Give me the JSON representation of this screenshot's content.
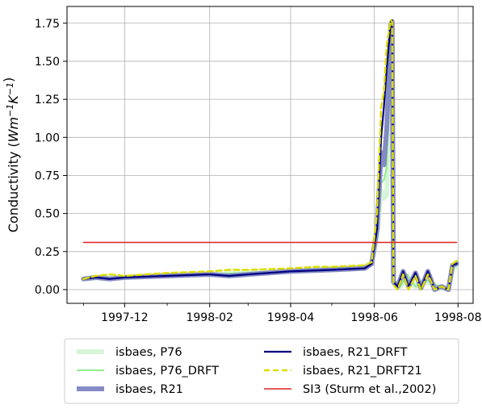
{
  "chart_data": {
    "type": "line",
    "ylabel_main": "Conductivity (",
    "ylabel_unit_html": "Wm-1K-1",
    "ylabel_suffix": ")",
    "ylim": [
      -0.09,
      1.86
    ],
    "xlim": [
      "1997-10-20",
      "1998-08-12"
    ],
    "grid": true,
    "legend_position": "below plot, two columns",
    "x_ticks": [
      "1997-12",
      "1998-02",
      "1998-04",
      "1998-06",
      "1998-08"
    ],
    "y_ticks": [
      "0.00",
      "0.25",
      "0.50",
      "0.75",
      "1.00",
      "1.25",
      "1.50",
      "1.75"
    ],
    "series": [
      {
        "name": "isbaes, P76",
        "color": "#d6f5d6",
        "points": [
          [
            "1997-11-01",
            0.07
          ],
          [
            "1997-11-15",
            0.08
          ],
          [
            "1997-12-01",
            0.08
          ],
          [
            "1998-01-01",
            0.09
          ],
          [
            "1998-02-01",
            0.1
          ],
          [
            "1998-03-01",
            0.11
          ],
          [
            "1998-04-01",
            0.12
          ],
          [
            "1998-05-01",
            0.14
          ],
          [
            "1998-05-25",
            0.15
          ],
          [
            "1998-05-30",
            0.17
          ],
          [
            "1998-06-03",
            0.35
          ],
          [
            "1998-06-06",
            0.65
          ],
          [
            "1998-06-08",
            0.6
          ],
          [
            "1998-06-10",
            0.62
          ],
          [
            "1998-06-12",
            1.3
          ],
          [
            "1998-06-14",
            1.55
          ],
          [
            "1998-06-15",
            0.05
          ],
          [
            "1998-06-20",
            0.02
          ],
          [
            "1998-06-25",
            0.08
          ],
          [
            "1998-07-01",
            0.02
          ],
          [
            "1998-07-10",
            0.05
          ],
          [
            "1998-07-20",
            0.01
          ],
          [
            "1998-07-25",
            0.0
          ],
          [
            "1998-07-28",
            0.14
          ],
          [
            "1998-07-31",
            0.15
          ]
        ]
      },
      {
        "name": "isbaes, P76_DRFT",
        "color": "#90ee90",
        "points": [
          [
            "1997-11-01",
            0.07
          ],
          [
            "1997-11-15",
            0.08
          ],
          [
            "1997-12-01",
            0.08
          ],
          [
            "1998-01-01",
            0.09
          ],
          [
            "1998-02-01",
            0.1
          ],
          [
            "1998-03-01",
            0.11
          ],
          [
            "1998-04-01",
            0.12
          ],
          [
            "1998-05-01",
            0.14
          ],
          [
            "1998-05-25",
            0.15
          ],
          [
            "1998-05-30",
            0.17
          ],
          [
            "1998-06-03",
            0.35
          ],
          [
            "1998-06-06",
            0.7
          ],
          [
            "1998-06-08",
            0.72
          ],
          [
            "1998-06-10",
            0.8
          ],
          [
            "1998-06-12",
            1.35
          ],
          [
            "1998-06-14",
            1.65
          ],
          [
            "1998-06-15",
            0.05
          ],
          [
            "1998-06-20",
            0.02
          ],
          [
            "1998-06-25",
            0.1
          ],
          [
            "1998-07-01",
            0.02
          ],
          [
            "1998-07-10",
            0.06
          ],
          [
            "1998-07-20",
            0.01
          ],
          [
            "1998-07-25",
            0.0
          ],
          [
            "1998-07-28",
            0.15
          ],
          [
            "1998-07-31",
            0.16
          ]
        ]
      },
      {
        "name": "isbaes, R21",
        "color": "#7f85c2",
        "points": [
          [
            "1997-11-01",
            0.07
          ],
          [
            "1997-11-10",
            0.08
          ],
          [
            "1997-11-20",
            0.07
          ],
          [
            "1997-12-01",
            0.08
          ],
          [
            "1998-01-01",
            0.09
          ],
          [
            "1998-02-01",
            0.1
          ],
          [
            "1998-02-15",
            0.09
          ],
          [
            "1998-03-01",
            0.1
          ],
          [
            "1998-04-01",
            0.12
          ],
          [
            "1998-05-01",
            0.13
          ],
          [
            "1998-05-25",
            0.14
          ],
          [
            "1998-05-30",
            0.17
          ],
          [
            "1998-06-03",
            0.4
          ],
          [
            "1998-06-06",
            0.9
          ],
          [
            "1998-06-08",
            0.82
          ],
          [
            "1998-06-10",
            1.05
          ],
          [
            "1998-06-12",
            1.5
          ],
          [
            "1998-06-13",
            1.74
          ],
          [
            "1998-06-14",
            1.76
          ],
          [
            "1998-06-15",
            0.05
          ],
          [
            "1998-06-18",
            0.02
          ],
          [
            "1998-06-22",
            0.12
          ],
          [
            "1998-06-26",
            0.02
          ],
          [
            "1998-07-01",
            0.11
          ],
          [
            "1998-07-05",
            0.01
          ],
          [
            "1998-07-10",
            0.12
          ],
          [
            "1998-07-15",
            0.0
          ],
          [
            "1998-07-20",
            0.02
          ],
          [
            "1998-07-25",
            0.0
          ],
          [
            "1998-07-28",
            0.16
          ],
          [
            "1998-07-31",
            0.17
          ]
        ]
      },
      {
        "name": "isbaes, R21_DRFT",
        "color": "#000080",
        "points": [
          [
            "1997-11-01",
            0.07
          ],
          [
            "1997-11-10",
            0.08
          ],
          [
            "1997-11-20",
            0.07
          ],
          [
            "1997-12-01",
            0.08
          ],
          [
            "1998-01-01",
            0.09
          ],
          [
            "1998-02-01",
            0.1
          ],
          [
            "1998-02-15",
            0.09
          ],
          [
            "1998-03-01",
            0.1
          ],
          [
            "1998-04-01",
            0.12
          ],
          [
            "1998-05-01",
            0.13
          ],
          [
            "1998-05-25",
            0.14
          ],
          [
            "1998-05-30",
            0.17
          ],
          [
            "1998-06-03",
            0.4
          ],
          [
            "1998-06-06",
            1.0
          ],
          [
            "1998-06-08",
            1.2
          ],
          [
            "1998-06-10",
            1.45
          ],
          [
            "1998-06-12",
            1.65
          ],
          [
            "1998-06-13",
            1.76
          ],
          [
            "1998-06-14",
            1.77
          ],
          [
            "1998-06-15",
            0.05
          ],
          [
            "1998-06-18",
            0.02
          ],
          [
            "1998-06-22",
            0.12
          ],
          [
            "1998-06-26",
            0.02
          ],
          [
            "1998-07-01",
            0.11
          ],
          [
            "1998-07-05",
            0.01
          ],
          [
            "1998-07-10",
            0.12
          ],
          [
            "1998-07-15",
            0.0
          ],
          [
            "1998-07-20",
            0.02
          ],
          [
            "1998-07-25",
            0.0
          ],
          [
            "1998-07-28",
            0.16
          ],
          [
            "1998-07-31",
            0.17
          ]
        ]
      },
      {
        "name": "isbaes, R21_DRFT21",
        "color": "#dddd00",
        "dashed": true,
        "points": [
          [
            "1997-11-01",
            0.07
          ],
          [
            "1997-11-10",
            0.09
          ],
          [
            "1997-11-20",
            0.1
          ],
          [
            "1997-12-01",
            0.09
          ],
          [
            "1998-01-01",
            0.11
          ],
          [
            "1998-02-01",
            0.12
          ],
          [
            "1998-02-15",
            0.13
          ],
          [
            "1998-03-01",
            0.13
          ],
          [
            "1998-04-01",
            0.14
          ],
          [
            "1998-04-20",
            0.15
          ],
          [
            "1998-05-01",
            0.15
          ],
          [
            "1998-05-25",
            0.16
          ],
          [
            "1998-05-30",
            0.18
          ],
          [
            "1998-06-03",
            0.5
          ],
          [
            "1998-06-06",
            1.2
          ],
          [
            "1998-06-08",
            1.3
          ],
          [
            "1998-06-10",
            1.6
          ],
          [
            "1998-06-12",
            1.72
          ],
          [
            "1998-06-13",
            1.77
          ],
          [
            "1998-06-14",
            1.76
          ],
          [
            "1998-06-15",
            0.03
          ],
          [
            "1998-06-18",
            0.0
          ],
          [
            "1998-06-22",
            0.1
          ],
          [
            "1998-06-26",
            0.0
          ],
          [
            "1998-07-01",
            0.09
          ],
          [
            "1998-07-05",
            0.0
          ],
          [
            "1998-07-10",
            0.1
          ],
          [
            "1998-07-15",
            0.0
          ],
          [
            "1998-07-20",
            0.02
          ],
          [
            "1998-07-25",
            0.0
          ],
          [
            "1998-07-28",
            0.17
          ],
          [
            "1998-07-31",
            0.19
          ]
        ]
      },
      {
        "name": "SI3 (Sturm et al.,2002)",
        "color": "#dd2222",
        "points": [
          [
            "1997-11-01",
            0.31
          ],
          [
            "1998-07-31",
            0.31
          ]
        ]
      }
    ]
  }
}
